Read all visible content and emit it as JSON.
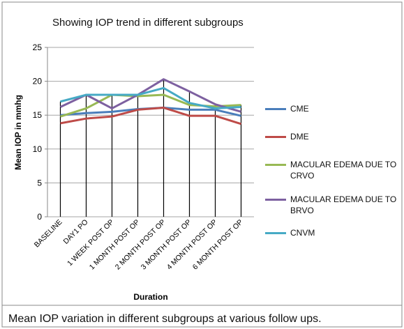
{
  "title": "Mean IOP variation in different subgroups at various follow ups.",
  "chart_data": {
    "type": "line",
    "title": "Showing IOP trend in different subgroups",
    "x_label": "Duration",
    "y_label": "Mean IOP in mmhg",
    "categories": [
      "BASELINE",
      "DAY1 PO",
      "1 WEEK POST OP",
      "1 MONTH POST OP",
      "2 MONTH POST OP",
      "3 MONTH POST OP",
      "4 MONTH POST OP",
      "6 MONTH POST OP"
    ],
    "series": [
      {
        "name": "CME",
        "color": "#4a7ebb",
        "values": [
          15,
          15.3,
          15.5,
          15.9,
          16.1,
          15.8,
          15.8,
          14.9
        ]
      },
      {
        "name": "DME",
        "color": "#be4b48",
        "values": [
          13.8,
          14.5,
          14.8,
          15.8,
          16.1,
          14.9,
          14.9,
          13.7
        ]
      },
      {
        "name": "MACULAR EDEMA DUE TO CRVO",
        "color": "#98b954",
        "values": [
          14.8,
          16,
          18,
          17.8,
          18,
          16.5,
          16.3,
          16.5
        ]
      },
      {
        "name": "MACULAR EDEMA DUE TO BRVO",
        "color": "#7d60a0",
        "values": [
          16.2,
          18,
          16,
          18,
          20.3,
          18.5,
          16.6,
          15.5
        ]
      },
      {
        "name": "CNVM",
        "color": "#46aac5",
        "values": [
          17,
          18,
          18,
          18,
          19,
          16.8,
          16,
          16.2
        ]
      }
    ],
    "ylim": [
      0,
      25
    ],
    "yticks": [
      0,
      5,
      10,
      15,
      20,
      25
    ],
    "grid": true
  }
}
